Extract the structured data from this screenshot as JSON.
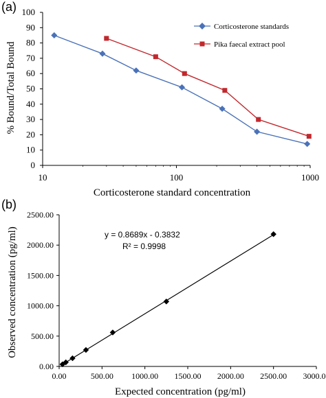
{
  "chart_data": [
    {
      "panel_label": "(a)",
      "type": "line",
      "xlabel": "Corticosterone standard concentration",
      "ylabel": "% Bound/Total Bound",
      "x_scale": "log",
      "xlim": [
        10,
        1000
      ],
      "ylim": [
        0,
        100
      ],
      "x_ticks": [
        "10",
        "100",
        "1000"
      ],
      "y_ticks": [
        "0",
        "10",
        "20",
        "30",
        "40",
        "50",
        "60",
        "70",
        "80",
        "90",
        "100"
      ],
      "grid": false,
      "legend_position": "top-right",
      "series": [
        {
          "name": "Corticosterone standards",
          "color": "#4a72b8",
          "marker": "diamond",
          "x": [
            12.2,
            28,
            50,
            110,
            220,
            400,
            950
          ],
          "y": [
            85,
            73,
            62,
            51,
            37,
            22,
            14
          ]
        },
        {
          "name": "Pika faecal extract pool",
          "color": "#c1282d",
          "marker": "square",
          "x": [
            30,
            70,
            115,
            230,
            410,
            980
          ],
          "y": [
            83,
            71,
            60,
            49,
            30,
            19
          ]
        }
      ]
    },
    {
      "panel_label": "(b)",
      "type": "scatter",
      "xlabel": "Expected concentration (pg/ml)",
      "ylabel": "Observed concentration (pg/ml)",
      "xlim": [
        0,
        3000
      ],
      "ylim": [
        0,
        2500
      ],
      "x_ticks": [
        "0.00",
        "500.00",
        "1000.00",
        "1500.00",
        "2000.00",
        "2500.00",
        "3000.00"
      ],
      "y_ticks": [
        "0.00",
        "500.00",
        "1000.00",
        "1500.00",
        "2000.00",
        "2500.00"
      ],
      "grid": false,
      "marker": "diamond",
      "color": "#000000",
      "x": [
        39,
        78,
        156,
        312.5,
        625,
        1250,
        2500
      ],
      "y": [
        35,
        68,
        135,
        272,
        560,
        1070,
        2180
      ],
      "trendline": {
        "slope": 0.8689,
        "intercept": -0.3832
      },
      "equation": "y = 0.8689x - 0.3832",
      "r_squared": "R² = 0.9998"
    }
  ]
}
